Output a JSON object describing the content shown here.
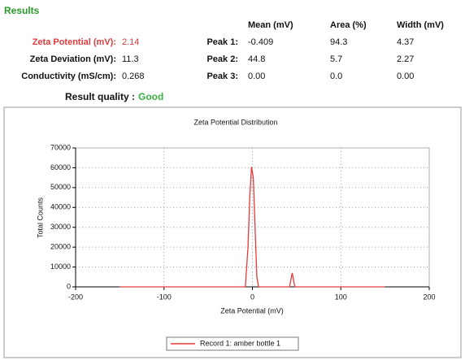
{
  "results": {
    "title": "Results",
    "summary": [
      {
        "label": "Zeta Potential (mV):",
        "value": "2.14"
      },
      {
        "label": "Zeta Deviation (mV):",
        "value": "11.3"
      },
      {
        "label": "Conductivity (mS/cm):",
        "value": "0.268"
      }
    ],
    "quality": {
      "label": "Result quality :",
      "value": "Good"
    },
    "peaks": {
      "headers": [
        "Mean (mV)",
        "Area (%)",
        "Width (mV)"
      ],
      "rows": [
        {
          "label": "Peak 1:",
          "values": [
            "-0.409",
            "94.3",
            "4.37"
          ]
        },
        {
          "label": "Peak 2:",
          "values": [
            "44.8",
            "5.7",
            "2.27"
          ]
        },
        {
          "label": "Peak 3:",
          "values": [
            "0.00",
            "0.0",
            "0.00"
          ]
        }
      ]
    }
  },
  "chart_data": {
    "type": "line",
    "title": "Zeta Potential Distribution",
    "x_label": "Zeta Potential (mV)",
    "y_label": "Total Counts",
    "x": [
      -150,
      -8,
      -5,
      -3,
      -1,
      1,
      3,
      5,
      7,
      42,
      45,
      48,
      150
    ],
    "series": [
      {
        "name": "Record 1: amber bottle 1",
        "color": "#e8393a",
        "values": [
          0,
          0,
          20000,
          45000,
          60500,
          55000,
          30000,
          5000,
          0,
          0,
          7000,
          0,
          0
        ]
      }
    ],
    "xlim": [
      -200,
      200
    ],
    "xticks": [
      -200,
      -100,
      0,
      100,
      200
    ],
    "ylim": [
      0,
      70000
    ],
    "yticks": [
      0,
      10000,
      20000,
      30000,
      40000,
      50000,
      60000,
      70000
    ],
    "grid": true,
    "legend": "bottom"
  }
}
